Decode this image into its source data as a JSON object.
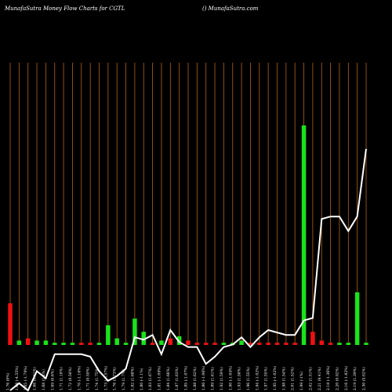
{
  "header": {
    "title": "MunafaSutra  Money Flow  Charts for CGTL",
    "site": "() MunafaSutra.com"
  },
  "colors": {
    "background": "#000000",
    "gridline": "#b8620a",
    "up": "#1be21b",
    "down": "#ee1111",
    "line": "#ffffff"
  },
  "chart_data": {
    "type": "bar",
    "bar_ylim": [
      0,
      100
    ],
    "line_ylim": [
      0,
      100
    ],
    "grid": "vertical",
    "categories": [
      "1.76 (0%)",
      "1.68 (-4.55%)",
      "1.65 (-1.79%)",
      "1.66 (0.61%)",
      "1.68 (1.2%)",
      "1.69 (0.6%)",
      "1.71 (1.18%)",
      "1.72 (0.58%)",
      "1.70 (-1.16%)",
      "1.71 (0.59%)",
      "1.74 (1.75%)",
      "1.73 (-0.57%)",
      "1.76 (1.73%)",
      "1.79 (1.7%)",
      "1.82 (1.68%)",
      "1.80 (-1.1%)",
      "1.83 (1.67%)",
      "1.81 (-1.09%)",
      "1.84 (1.66%)",
      "1.87 (1.63%)",
      "1.85 (-1.07%)",
      "1.88 (1.62%)",
      "1.86 (-1.06%)",
      "1.89 (1.61%)",
      "1.92 (1.59%)",
      "1.90 (-1.04%)",
      "1.93 (1.58%)",
      "1.96 (1.55%)",
      "1.94 (-1.02%)",
      "1.97 (1.55%)",
      "1.95 (-1.02%)",
      "1.98 (1.54%)",
      "2.01 (1.52%)",
      "1.99 (-1%)",
      "2.02 (1.51%)",
      "2.21 (9.41%)",
      "2.18 (-1.36%)",
      "2.20 (0.92%)",
      "2.16 (-1.82%)",
      "2.19 (1.39%)",
      "2.30 (5.02%)"
    ],
    "money_flow": {
      "values": [
        19,
        2,
        3,
        2,
        2,
        1,
        1,
        1,
        1,
        1,
        1,
        9,
        3,
        1,
        12,
        6,
        1,
        2,
        3,
        4,
        2,
        1,
        1,
        1,
        1,
        1,
        2,
        1,
        1,
        1,
        1,
        1,
        1,
        100,
        6,
        2,
        1,
        1,
        1,
        24,
        1
      ],
      "direction": [
        "down",
        "up",
        "down",
        "up",
        "up",
        "up",
        "up",
        "up",
        "down",
        "down",
        "up",
        "up",
        "up",
        "up",
        "up",
        "up",
        "down",
        "up",
        "down",
        "up",
        "down",
        "down",
        "down",
        "down",
        "up",
        "up",
        "up",
        "down",
        "down",
        "down",
        "down",
        "down",
        "down",
        "up",
        "down",
        "down",
        "down",
        "up",
        "up",
        "up",
        "up"
      ]
    },
    "price_line": {
      "values": [
        0,
        3,
        0,
        8,
        5,
        15,
        15,
        15,
        15,
        14,
        8,
        4,
        6,
        9,
        22,
        21,
        23,
        15,
        25,
        20,
        18,
        18,
        11,
        14,
        18,
        19,
        22,
        18,
        22,
        25,
        24,
        23,
        23,
        29,
        30,
        71,
        72,
        72,
        66,
        72,
        100
      ]
    }
  }
}
